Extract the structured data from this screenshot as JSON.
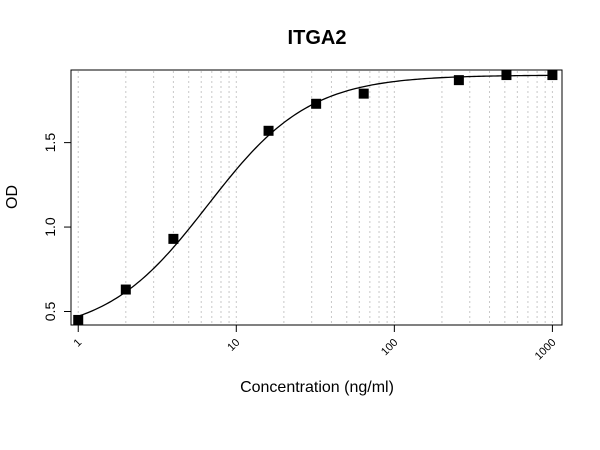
{
  "chart_data": {
    "type": "scatter",
    "title": "ITGA2",
    "xlabel": "Concentration (ng/ml)",
    "ylabel": "OD",
    "x_scale": "log",
    "xlim": [
      0.9,
      1150
    ],
    "ylim": [
      0.42,
      1.93
    ],
    "x_ticks": [
      {
        "value": 1,
        "label": "1"
      },
      {
        "value": 10,
        "label": "10"
      },
      {
        "value": 100,
        "label": "100"
      },
      {
        "value": 1000,
        "label": "1000"
      }
    ],
    "y_ticks": [
      {
        "value": 0.5,
        "label": "0.5"
      },
      {
        "value": 1.0,
        "label": "1.0"
      },
      {
        "value": 1.5,
        "label": "1.5"
      }
    ],
    "grid": "vertical-dotted",
    "points": {
      "x": [
        1,
        2,
        4,
        16,
        32,
        64,
        256,
        512,
        1000
      ],
      "y": [
        0.45,
        0.63,
        0.93,
        1.57,
        1.73,
        1.79,
        1.87,
        1.9,
        1.9
      ]
    },
    "fit": {
      "model": "4PL",
      "bottom": 0.36,
      "top": 1.9,
      "ec50": 6.6,
      "hill": 1.35
    }
  }
}
